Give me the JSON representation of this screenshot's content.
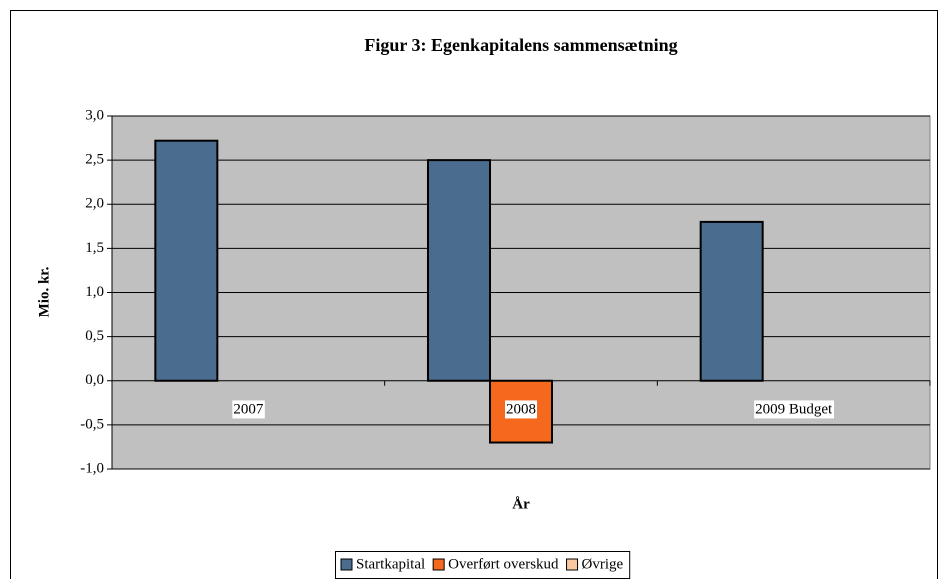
{
  "chart_data": {
    "type": "bar",
    "title": "Figur 3: Egenkapitalens sammensætning",
    "x_label": "År",
    "y_label": "Mio. kr.",
    "categories": [
      "2007",
      "2008",
      "2009 Budget"
    ],
    "series": [
      {
        "name": "Startkapital",
        "color": "#4a6d8f",
        "values": [
          2.72,
          2.5,
          1.8
        ]
      },
      {
        "name": "Overført overskud",
        "color": "#f5691e",
        "values": [
          null,
          -0.7,
          null
        ]
      },
      {
        "name": "Øvrige",
        "color": "#f9c89e",
        "values": [
          null,
          null,
          null
        ]
      }
    ],
    "ylim": [
      -1.0,
      3.0
    ],
    "yticks": [
      {
        "value": -1.0,
        "label": "-1,0"
      },
      {
        "value": -0.5,
        "label": "-0,5"
      },
      {
        "value": 0,
        "label": "0,0"
      },
      {
        "value": 0.5,
        "label": "0,5"
      },
      {
        "value": 1.0,
        "label": "1,0"
      },
      {
        "value": 1.5,
        "label": "1,5"
      },
      {
        "value": 2.0,
        "label": "2,0"
      },
      {
        "value": 2.5,
        "label": "2,5"
      },
      {
        "value": 3.0,
        "label": "3,0"
      }
    ],
    "grid": true,
    "legend": "bottom"
  }
}
